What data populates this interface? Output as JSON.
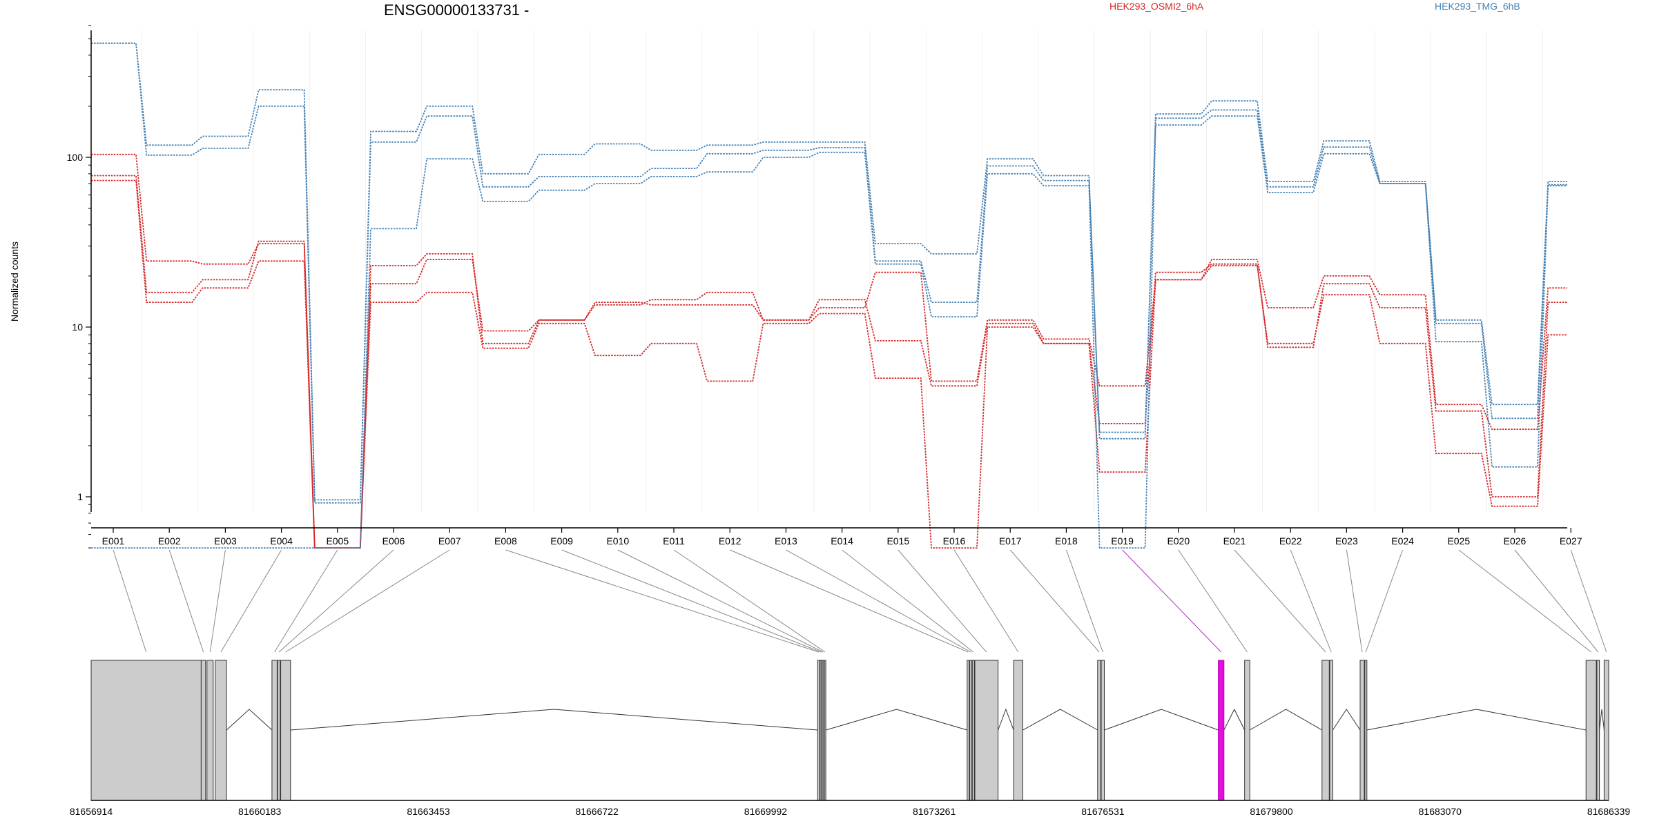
{
  "chart_data": {
    "type": "line",
    "title": "ENSG00000133731 -",
    "ylabel": "Normalized counts",
    "yscale": "log",
    "ylim": [
      0.5,
      600
    ],
    "yticks": [
      "1",
      "10",
      "100"
    ],
    "ytick_values": [
      1,
      10,
      100
    ],
    "grid": "light vertical",
    "legend_placement": "top",
    "exons": [
      "E001",
      "E002",
      "E003",
      "E004",
      "E005",
      "E006",
      "E007",
      "E008",
      "E009",
      "E010",
      "E011",
      "E012",
      "E013",
      "E014",
      "E015",
      "E016",
      "E017",
      "E018",
      "E019",
      "E020",
      "E021",
      "E022",
      "E023",
      "E024",
      "E025",
      "E026",
      "E027"
    ],
    "series": [
      {
        "group": "HEK293_OSMI2_6hA",
        "color": "#d62728",
        "values": [
          78,
          16,
          19,
          32,
          0.5,
          18,
          25,
          9.5,
          11,
          13.5,
          14.5,
          16,
          11,
          13,
          21,
          4.8,
          11,
          8.5,
          4.5,
          19,
          25,
          13,
          20,
          15.5,
          3.5,
          2.5,
          17
        ]
      },
      {
        "group": "HEK293_OSMI2_6hA",
        "color": "#d62728",
        "values": [
          104,
          24.5,
          23.5,
          31,
          0.5,
          23,
          27,
          8,
          11,
          14,
          13.5,
          13.5,
          11,
          14.5,
          8.3,
          4.5,
          10.5,
          8,
          2.7,
          21,
          23.5,
          7.6,
          18,
          13,
          3.2,
          1,
          14
        ]
      },
      {
        "group": "HEK293_OSMI2_6hA",
        "color": "#d62728",
        "values": [
          73,
          14,
          17,
          24.5,
          0.5,
          14,
          16,
          7.5,
          10.5,
          6.8,
          8,
          4.8,
          10.5,
          12,
          5,
          0.5,
          10,
          8,
          1.4,
          19,
          23,
          8,
          15.5,
          8,
          1.8,
          0.88,
          9
        ]
      },
      {
        "group": "HEK293_TMG_6hB",
        "color": "#4682b4",
        "values": [
          470,
          118,
          133,
          250,
          0.96,
          142,
          200,
          80,
          104,
          120,
          110,
          118,
          123,
          123,
          31,
          27,
          98,
          78,
          2.2,
          180,
          215,
          72,
          125,
          72,
          11,
          3.5,
          72
        ]
      },
      {
        "group": "HEK293_TMG_6hB",
        "color": "#4682b4",
        "values": [
          470,
          103,
          113,
          200,
          0.92,
          123,
          175,
          67,
          77,
          77,
          86,
          105,
          110,
          114,
          24.5,
          14,
          89,
          73,
          2.4,
          170,
          190,
          67,
          115,
          70,
          10.5,
          2.9,
          69
        ]
      },
      {
        "group": "HEK293_TMG_6hB",
        "color": "#4682b4",
        "values": [
          0.5,
          0.5,
          0.5,
          0.5,
          0.5,
          38,
          98,
          55,
          64,
          70,
          77,
          82,
          100,
          107,
          23.5,
          11.5,
          80,
          68,
          0.5,
          155,
          175,
          62,
          105,
          70,
          8.2,
          1.5,
          68
        ]
      }
    ],
    "legend": [
      {
        "name": "HEK293_OSMI2_6hA",
        "color": "#d62728"
      },
      {
        "name": "HEK293_TMG_6hB",
        "color": "#4682b4"
      }
    ],
    "gene_model": {
      "genomic_ticks": [
        "81656914",
        "81660183",
        "81663453",
        "81666722",
        "81669992",
        "81673261",
        "81676531",
        "81679800",
        "81683070",
        "81686339"
      ],
      "genomic_tick_values": [
        81656914,
        81660183,
        81663453,
        81666722,
        81669992,
        81673261,
        81676531,
        81679800,
        81683070,
        81686339
      ],
      "range": [
        81656914,
        81686339
      ],
      "exon_regions": [
        {
          "id": "E001",
          "start": 81656914,
          "end": 81659048
        },
        {
          "id": "E002",
          "start": 81659048,
          "end": 81659134
        },
        {
          "id": "E003",
          "start": 81659160,
          "end": 81659280
        },
        {
          "id": "E004",
          "start": 81659320,
          "end": 81659540
        },
        {
          "id": "E005",
          "start": 81660420,
          "end": 81660520
        },
        {
          "id": "E006",
          "start": 81660530,
          "end": 81660580
        },
        {
          "id": "E007",
          "start": 81660590,
          "end": 81660780
        },
        {
          "id": "E008",
          "start": 81671000,
          "end": 81671040
        },
        {
          "id": "E009",
          "start": 81671050,
          "end": 81671080
        },
        {
          "id": "E010",
          "start": 81671090,
          "end": 81671120
        },
        {
          "id": "E011",
          "start": 81671130,
          "end": 81671160
        },
        {
          "id": "E012",
          "start": 81673900,
          "end": 81673940
        },
        {
          "id": "E013",
          "start": 81673950,
          "end": 81673990
        },
        {
          "id": "E014",
          "start": 81674000,
          "end": 81674040
        },
        {
          "id": "E015",
          "start": 81674050,
          "end": 81674500
        },
        {
          "id": "E016",
          "start": 81674800,
          "end": 81674980
        },
        {
          "id": "E017",
          "start": 81676430,
          "end": 81676490
        },
        {
          "id": "E018",
          "start": 81676500,
          "end": 81676560
        },
        {
          "id": "E019",
          "start": 81678770,
          "end": 81678880,
          "highlight": "#e010e0"
        },
        {
          "id": "E020",
          "start": 81679280,
          "end": 81679380
        },
        {
          "id": "E021",
          "start": 81680780,
          "end": 81680920
        },
        {
          "id": "E022",
          "start": 81680930,
          "end": 81680990
        },
        {
          "id": "E023",
          "start": 81681520,
          "end": 81681600
        },
        {
          "id": "E024",
          "start": 81681610,
          "end": 81681650
        },
        {
          "id": "E025",
          "start": 81685900,
          "end": 81686100
        },
        {
          "id": "E026",
          "start": 81686110,
          "end": 81686160
        },
        {
          "id": "E027",
          "start": 81686250,
          "end": 81686339
        }
      ]
    }
  }
}
